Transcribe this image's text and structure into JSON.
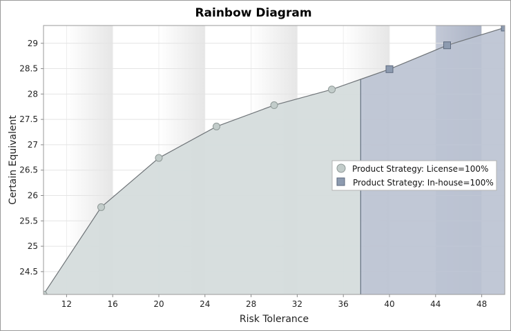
{
  "chart_data": {
    "type": "area",
    "title": "Rainbow Diagram",
    "xlabel": "Risk Tolerance",
    "ylabel": "Certain Equivalent",
    "xlim": [
      10,
      50
    ],
    "ylim": [
      24.05,
      29.35
    ],
    "xticks": [
      12,
      16,
      20,
      24,
      28,
      32,
      36,
      40,
      44,
      48
    ],
    "yticks": [
      24.5,
      25,
      25.5,
      26,
      26.5,
      27,
      27.5,
      28,
      28.5,
      29
    ],
    "curve": [
      {
        "x": 10,
        "y": 24.05
      },
      {
        "x": 15,
        "y": 25.77
      },
      {
        "x": 20,
        "y": 26.74
      },
      {
        "x": 25,
        "y": 27.36
      },
      {
        "x": 30,
        "y": 27.78
      },
      {
        "x": 35,
        "y": 28.09
      },
      {
        "x": 37.5,
        "y": 28.29
      },
      {
        "x": 40,
        "y": 28.49
      },
      {
        "x": 45,
        "y": 28.96
      },
      {
        "x": 50,
        "y": 29.31
      }
    ],
    "switch_x": 37.5,
    "series": [
      {
        "name": "Product Strategy: License=100%",
        "marker": "circle",
        "color": "#c2ccca",
        "fill": "#d5dcdc",
        "x": [
          10,
          15,
          20,
          25,
          30,
          35
        ],
        "y": [
          24.05,
          25.77,
          26.74,
          27.36,
          27.78,
          28.09
        ]
      },
      {
        "name": "Product Strategy: In-house=100%",
        "marker": "square",
        "color": "#8d9bb0",
        "fill": "#bcc3d3",
        "x": [
          40,
          45,
          50
        ],
        "y": [
          28.49,
          28.96,
          29.31
        ]
      }
    ],
    "legend_position": "right",
    "grid": true
  }
}
